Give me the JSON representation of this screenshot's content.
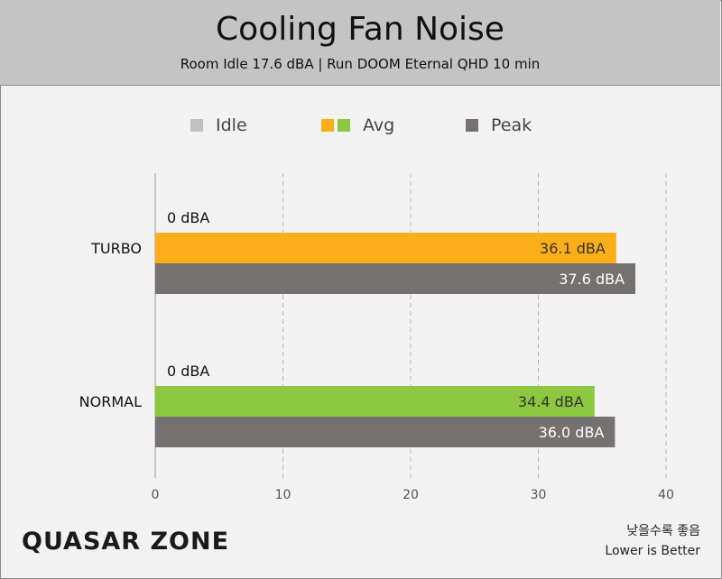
{
  "chart_data": {
    "type": "bar",
    "orientation": "horizontal",
    "title": "Cooling Fan Noise",
    "subtitle": "Room Idle 17.6 dBA  |  Run DOOM Eternal QHD 10 min",
    "categories": [
      "TURBO",
      "NORMAL"
    ],
    "series": [
      {
        "name": "Idle",
        "values": [
          0,
          0
        ],
        "labels": [
          "0 dBA",
          "0 dBA"
        ],
        "color": "#c0c0c0"
      },
      {
        "name": "Avg",
        "values": [
          36.1,
          34.4
        ],
        "labels": [
          "36.1 dBA",
          "34.4 dBA"
        ],
        "colors": [
          "#fcae1a",
          "#8dc63f"
        ]
      },
      {
        "name": "Peak",
        "values": [
          37.6,
          36.0
        ],
        "labels": [
          "37.6 dBA",
          "36.0 dBA"
        ],
        "color": "#767171"
      }
    ],
    "xlim": [
      0,
      40
    ],
    "xticks": [
      "0",
      "10",
      "20",
      "30",
      "40"
    ],
    "grid": "vertical-dashed",
    "legend_position": "top-center"
  },
  "legend": {
    "idle_label": "Idle",
    "avg_label": "Avg",
    "peak_label": "Peak",
    "idle_color": "#c0c0c0",
    "avg_colors": [
      "#fcae1a",
      "#8dc63f"
    ],
    "peak_color": "#767171"
  },
  "footer": {
    "logo_text": "QUASAR ZONE",
    "note_ko": "낮을수록 좋음",
    "note_en": "Lower is Better"
  }
}
